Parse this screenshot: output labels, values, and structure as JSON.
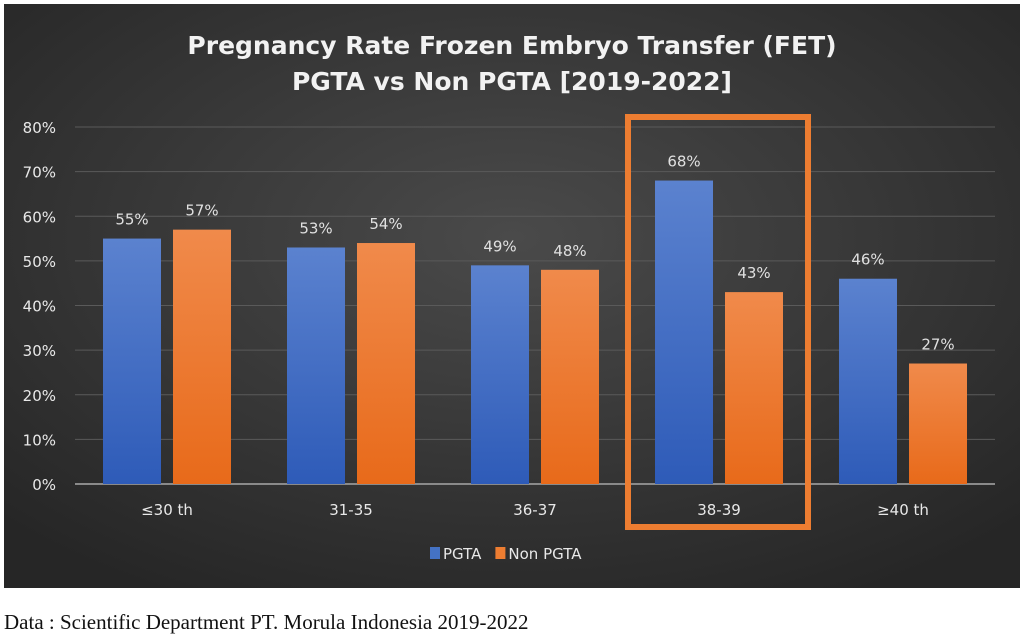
{
  "chart_data": {
    "type": "bar",
    "title": [
      "Pregnancy Rate Frozen Embryo Transfer (FET)",
      "PGTA vs Non PGTA [2019-2022]"
    ],
    "categories": [
      "≤30 th",
      "31-35",
      "36-37",
      "38-39",
      "≥40 th"
    ],
    "series": [
      {
        "name": "PGTA",
        "values": [
          55,
          53,
          49,
          68,
          46
        ],
        "labels": [
          "55%",
          "53%",
          "49%",
          "68%",
          "46%"
        ],
        "color": "#4472C4"
      },
      {
        "name": "Non PGTA",
        "values": [
          57,
          54,
          48,
          43,
          27
        ],
        "labels": [
          "57%",
          "54%",
          "48%",
          "43%",
          "27%"
        ],
        "color": "#ED7D31"
      }
    ],
    "yticks": [
      "0%",
      "10%",
      "20%",
      "30%",
      "40%",
      "50%",
      "60%",
      "70%",
      "80%"
    ],
    "ylim": [
      0,
      80
    ],
    "grid": true,
    "legend": "bottom-center",
    "highlighted_category": "38-39",
    "highlight_color": "#ED7D31",
    "background": "dark-gray"
  },
  "footer": "Data : Scientific Department PT. Morula Indonesia 2019-2022"
}
